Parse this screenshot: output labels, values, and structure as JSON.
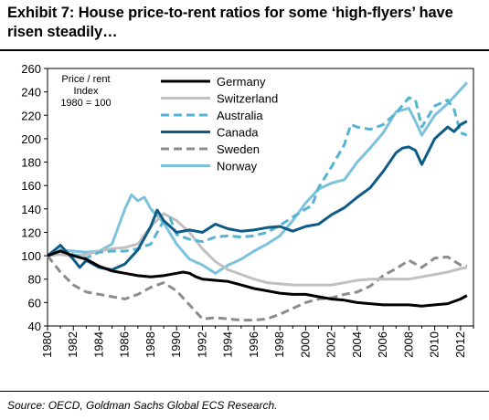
{
  "title": "Exhibit 7: House price-to-rent ratios for some ‘high-flyers’ have risen steadily…",
  "source": "Source: OECD, Goldman Sachs Global ECS Research.",
  "chart_data": {
    "type": "line",
    "title": "Exhibit 7: House price-to-rent ratios for some ‘high-flyers’ have risen steadily…",
    "note": [
      "Price / rent",
      "Index",
      "1980 = 100"
    ],
    "xlabel": "",
    "ylabel": "",
    "xlim": [
      1980,
      2013
    ],
    "ylim": [
      40,
      260
    ],
    "x_ticks": [
      1980,
      1982,
      1984,
      1986,
      1988,
      1990,
      1992,
      1994,
      1996,
      1998,
      2000,
      2002,
      2004,
      2006,
      2008,
      2010,
      2012
    ],
    "y_ticks": [
      40,
      60,
      80,
      100,
      120,
      140,
      160,
      180,
      200,
      220,
      240,
      260
    ],
    "legend_position": "top-center",
    "grid": false,
    "series": [
      {
        "name": "Germany",
        "color": "#000000",
        "dash": "solid",
        "points": [
          [
            1980,
            100
          ],
          [
            1980.5,
            102
          ],
          [
            1981,
            104
          ],
          [
            1981.5,
            102
          ],
          [
            1982,
            100
          ],
          [
            1983,
            97
          ],
          [
            1984,
            91
          ],
          [
            1985,
            87
          ],
          [
            1986,
            85
          ],
          [
            1987,
            83
          ],
          [
            1988,
            82
          ],
          [
            1989,
            83
          ],
          [
            1990,
            85
          ],
          [
            1990.5,
            86
          ],
          [
            1991,
            85
          ],
          [
            1991.5,
            82
          ],
          [
            1992,
            80
          ],
          [
            1993,
            79
          ],
          [
            1994,
            78
          ],
          [
            1995,
            75
          ],
          [
            1996,
            72
          ],
          [
            1997,
            70
          ],
          [
            1998,
            68
          ],
          [
            1999,
            67
          ],
          [
            2000,
            67
          ],
          [
            2001,
            65
          ],
          [
            2002,
            63
          ],
          [
            2003,
            62
          ],
          [
            2004,
            60
          ],
          [
            2005,
            59
          ],
          [
            2006,
            58
          ],
          [
            2007,
            58
          ],
          [
            2008,
            58
          ],
          [
            2009,
            57
          ],
          [
            2010,
            58
          ],
          [
            2011,
            59
          ],
          [
            2012,
            63
          ],
          [
            2012.5,
            66
          ]
        ]
      },
      {
        "name": "Switzerland",
        "color": "#c0c0c0",
        "dash": "solid",
        "points": [
          [
            1980,
            100
          ],
          [
            1981,
            101
          ],
          [
            1982,
            100
          ],
          [
            1983,
            101
          ],
          [
            1984,
            104
          ],
          [
            1985,
            106
          ],
          [
            1986,
            107
          ],
          [
            1987,
            110
          ],
          [
            1988,
            125
          ],
          [
            1989,
            136
          ],
          [
            1990,
            130
          ],
          [
            1991,
            120
          ],
          [
            1992,
            106
          ],
          [
            1993,
            95
          ],
          [
            1994,
            88
          ],
          [
            1995,
            84
          ],
          [
            1996,
            80
          ],
          [
            1997,
            77
          ],
          [
            1998,
            76
          ],
          [
            1999,
            75
          ],
          [
            2000,
            75
          ],
          [
            2001,
            75
          ],
          [
            2002,
            75
          ],
          [
            2003,
            77
          ],
          [
            2004,
            79
          ],
          [
            2005,
            80
          ],
          [
            2006,
            80
          ],
          [
            2007,
            80
          ],
          [
            2008,
            80
          ],
          [
            2009,
            82
          ],
          [
            2010,
            84
          ],
          [
            2011,
            86
          ],
          [
            2012,
            89
          ],
          [
            2012.5,
            90
          ]
        ]
      },
      {
        "name": "Australia",
        "color": "#56b4d3",
        "dash": "dashed",
        "points": [
          [
            1980,
            100
          ],
          [
            1981,
            105
          ],
          [
            1982,
            101
          ],
          [
            1983,
            98
          ],
          [
            1984,
            103
          ],
          [
            1985,
            104
          ],
          [
            1986,
            104
          ],
          [
            1987,
            106
          ],
          [
            1988,
            110
          ],
          [
            1989,
            130
          ],
          [
            1989.5,
            132
          ],
          [
            1990,
            118
          ],
          [
            1991,
            114
          ],
          [
            1992,
            112
          ],
          [
            1993,
            116
          ],
          [
            1994,
            117
          ],
          [
            1995,
            116
          ],
          [
            1996,
            117
          ],
          [
            1997,
            120
          ],
          [
            1998,
            126
          ],
          [
            1999,
            133
          ],
          [
            2000,
            140
          ],
          [
            2000.5,
            143
          ],
          [
            2001,
            158
          ],
          [
            2002,
            176
          ],
          [
            2003,
            195
          ],
          [
            2003.5,
            212
          ],
          [
            2004,
            210
          ],
          [
            2005,
            208
          ],
          [
            2006,
            212
          ],
          [
            2007,
            222
          ],
          [
            2008,
            235
          ],
          [
            2008.5,
            233
          ],
          [
            2009,
            210
          ],
          [
            2010,
            228
          ],
          [
            2011,
            233
          ],
          [
            2011.5,
            225
          ],
          [
            2012,
            205
          ],
          [
            2012.5,
            203
          ]
        ]
      },
      {
        "name": "Canada",
        "color": "#0d5b86",
        "dash": "solid",
        "points": [
          [
            1980,
            100
          ],
          [
            1981,
            109
          ],
          [
            1982,
            97
          ],
          [
            1982.5,
            90
          ],
          [
            1983,
            96
          ],
          [
            1984,
            90
          ],
          [
            1985,
            88
          ],
          [
            1986,
            93
          ],
          [
            1987,
            105
          ],
          [
            1988,
            125
          ],
          [
            1988.5,
            139
          ],
          [
            1989,
            130
          ],
          [
            1990,
            120
          ],
          [
            1991,
            122
          ],
          [
            1992,
            120
          ],
          [
            1993,
            127
          ],
          [
            1994,
            123
          ],
          [
            1995,
            121
          ],
          [
            1996,
            122
          ],
          [
            1997,
            124
          ],
          [
            1998,
            125
          ],
          [
            1999,
            121
          ],
          [
            2000,
            125
          ],
          [
            2001,
            127
          ],
          [
            2002,
            135
          ],
          [
            2003,
            141
          ],
          [
            2004,
            150
          ],
          [
            2005,
            158
          ],
          [
            2006,
            172
          ],
          [
            2007,
            188
          ],
          [
            2007.5,
            192
          ],
          [
            2008,
            193
          ],
          [
            2008.5,
            190
          ],
          [
            2009,
            178
          ],
          [
            2010,
            200
          ],
          [
            2011,
            210
          ],
          [
            2011.5,
            206
          ],
          [
            2012,
            212
          ],
          [
            2012.5,
            215
          ]
        ]
      },
      {
        "name": "Sweden",
        "color": "#8c8c8c",
        "dash": "dashed",
        "points": [
          [
            1980,
            100
          ],
          [
            1981,
            86
          ],
          [
            1982,
            75
          ],
          [
            1983,
            69
          ],
          [
            1984,
            67
          ],
          [
            1985,
            65
          ],
          [
            1986,
            63
          ],
          [
            1987,
            67
          ],
          [
            1988,
            73
          ],
          [
            1989,
            77
          ],
          [
            1990,
            70
          ],
          [
            1991,
            58
          ],
          [
            1992,
            46
          ],
          [
            1993,
            47
          ],
          [
            1994,
            46
          ],
          [
            1995,
            45
          ],
          [
            1996,
            45
          ],
          [
            1997,
            46
          ],
          [
            1998,
            50
          ],
          [
            1999,
            55
          ],
          [
            2000,
            60
          ],
          [
            2001,
            63
          ],
          [
            2002,
            64
          ],
          [
            2003,
            67
          ],
          [
            2004,
            69
          ],
          [
            2005,
            74
          ],
          [
            2006,
            83
          ],
          [
            2007,
            89
          ],
          [
            2008,
            96
          ],
          [
            2009,
            90
          ],
          [
            2010,
            98
          ],
          [
            2011,
            99
          ],
          [
            2012,
            92
          ],
          [
            2012.5,
            91
          ]
        ]
      },
      {
        "name": "Norway",
        "color": "#7cc2dc",
        "dash": "solid",
        "points": [
          [
            1980,
            100
          ],
          [
            1981,
            105
          ],
          [
            1982,
            104
          ],
          [
            1983,
            103
          ],
          [
            1984,
            104
          ],
          [
            1985,
            110
          ],
          [
            1986,
            140
          ],
          [
            1986.5,
            152
          ],
          [
            1987,
            147
          ],
          [
            1987.5,
            150
          ],
          [
            1988,
            140
          ],
          [
            1989,
            128
          ],
          [
            1990,
            110
          ],
          [
            1991,
            97
          ],
          [
            1992,
            92
          ],
          [
            1993,
            85
          ],
          [
            1994,
            92
          ],
          [
            1995,
            97
          ],
          [
            1996,
            104
          ],
          [
            1997,
            110
          ],
          [
            1998,
            117
          ],
          [
            1999,
            130
          ],
          [
            2000,
            145
          ],
          [
            2001,
            157
          ],
          [
            2002,
            162
          ],
          [
            2003,
            165
          ],
          [
            2004,
            180
          ],
          [
            2005,
            192
          ],
          [
            2006,
            205
          ],
          [
            2007,
            223
          ],
          [
            2008,
            226
          ],
          [
            2008.5,
            215
          ],
          [
            2009,
            203
          ],
          [
            2010,
            220
          ],
          [
            2011,
            230
          ],
          [
            2012,
            242
          ],
          [
            2012.5,
            248
          ]
        ]
      }
    ]
  }
}
